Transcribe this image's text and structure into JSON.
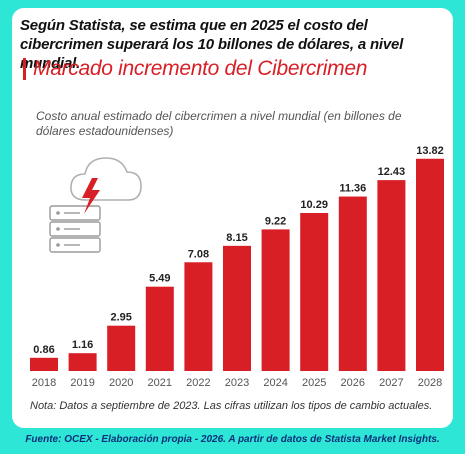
{
  "headline": "Según Statista, se estima que en 2025 el costo del cibercrimen superará los 10 billones de dólares, a nivel mundial.",
  "chart_data": {
    "type": "bar",
    "title": "Marcado incremento del Cibercrimen",
    "subtitle": "Costo anual estimado del cibercrimen a nivel mundial (en billones de dólares estadounidenses)",
    "categories": [
      "2018",
      "2019",
      "2020",
      "2021",
      "2022",
      "2023",
      "2024",
      "2025",
      "2026",
      "2027",
      "2028"
    ],
    "values": [
      0.86,
      1.16,
      2.95,
      5.49,
      7.08,
      8.15,
      9.22,
      10.29,
      11.36,
      12.43,
      13.82
    ],
    "value_labels": [
      "0.86",
      "1.16",
      "2.95",
      "5.49",
      "7.08",
      "8.15",
      "9.22",
      "10.29",
      "11.36",
      "12.43",
      "13.82"
    ],
    "xlabel": "",
    "ylabel": "",
    "ylim": [
      0,
      14
    ],
    "grid": false,
    "bar_color": "#d81f26"
  },
  "icon": "cloud-server-lightning-icon",
  "note": "Nota: Datos a septiembre de 2023. Las cifras utilizan los tipos de cambio actuales.",
  "source": "Fuente: OCEX - Elaboración propia - 2026. A partir de datos de Statista Market Insights.",
  "colors": {
    "background": "#2ee6d6",
    "accent": "#d81f26",
    "source_text": "#0b2f7a"
  }
}
